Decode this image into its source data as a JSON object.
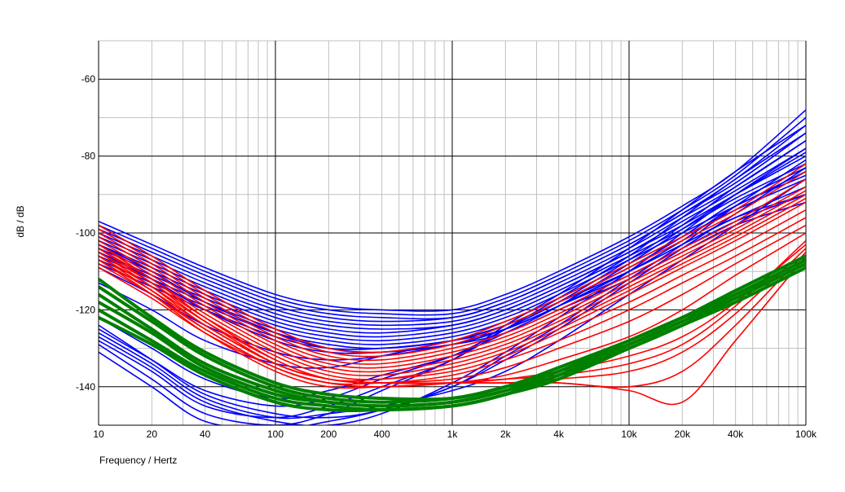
{
  "chart_data": {
    "type": "line",
    "title": "",
    "xlabel": "Frequency / Hertz",
    "ylabel": "dB / dB",
    "xscale": "log",
    "xlim": [
      10,
      100000
    ],
    "ylim": [
      -150,
      -50
    ],
    "grid": true,
    "legend": "none",
    "x_ticks": [
      {
        "value": 10,
        "label": "10"
      },
      {
        "value": 20,
        "label": "20"
      },
      {
        "value": 40,
        "label": "40"
      },
      {
        "value": 100,
        "label": "100"
      },
      {
        "value": 200,
        "label": "200"
      },
      {
        "value": 400,
        "label": "400"
      },
      {
        "value": 1000,
        "label": "1k"
      },
      {
        "value": 2000,
        "label": "2k"
      },
      {
        "value": 4000,
        "label": "4k"
      },
      {
        "value": 10000,
        "label": "10k"
      },
      {
        "value": 20000,
        "label": "20k"
      },
      {
        "value": 40000,
        "label": "40k"
      },
      {
        "value": 100000,
        "label": "100k"
      }
    ],
    "y_ticks": [
      {
        "value": -60,
        "label": "-60"
      },
      {
        "value": -80,
        "label": "-80"
      },
      {
        "value": -100,
        "label": "-100"
      },
      {
        "value": -120,
        "label": "-120"
      },
      {
        "value": -140,
        "label": "-140"
      }
    ],
    "x": [
      10,
      20,
      40,
      100,
      200,
      400,
      1000,
      2000,
      4000,
      10000,
      20000,
      40000,
      100000
    ],
    "series_groups": [
      {
        "color": "#0000ff",
        "series": [
          {
            "values": [
              -97,
              -103,
              -109,
              -116,
              -119,
              -120,
              -120,
              -116,
              -110,
              -101,
              -93,
              -84,
              -68
            ]
          },
          {
            "values": [
              -98,
              -104,
              -110,
              -117,
              -120,
              -121,
              -121,
              -117,
              -111,
              -102,
              -94,
              -85,
              -70
            ]
          },
          {
            "values": [
              -99,
              -105,
              -111,
              -118,
              -121,
              -122,
              -122,
              -118,
              -112,
              -103,
              -95,
              -86,
              -72
            ]
          },
          {
            "values": [
              -100,
              -106,
              -112,
              -119,
              -122,
              -123,
              -122,
              -118,
              -112,
              -103,
              -95,
              -87,
              -74
            ]
          },
          {
            "values": [
              -101,
              -107,
              -113,
              -120,
              -123,
              -124,
              -123,
              -119,
              -113,
              -104,
              -96,
              -88,
              -76
            ]
          },
          {
            "values": [
              -102,
              -108,
              -114,
              -121,
              -124,
              -125,
              -124,
              -120,
              -114,
              -105,
              -97,
              -89,
              -78
            ]
          },
          {
            "values": [
              -103,
              -109,
              -115,
              -122,
              -125,
              -126,
              -124,
              -120,
              -114,
              -105,
              -98,
              -90,
              -80
            ]
          },
          {
            "values": [
              -104,
              -110,
              -116,
              -123,
              -126,
              -127,
              -125,
              -121,
              -115,
              -106,
              -99,
              -91,
              -82
            ]
          },
          {
            "values": [
              -105,
              -111,
              -117,
              -124,
              -127,
              -128,
              -126,
              -122,
              -116,
              -107,
              -100,
              -93,
              -84
            ]
          },
          {
            "values": [
              -106,
              -112,
              -118,
              -125,
              -128,
              -129,
              -127,
              -123,
              -117,
              -108,
              -101,
              -94,
              -86
            ]
          },
          {
            "values": [
              -107,
              -113,
              -119,
              -126,
              -129,
              -130,
              -128,
              -124,
              -118,
              -110,
              -103,
              -96,
              -88
            ]
          },
          {
            "values": [
              -108,
              -114,
              -120,
              -127,
              -130,
              -130,
              -128,
              -125,
              -119,
              -111,
              -104,
              -97,
              -90
            ]
          },
          {
            "values": [
              -103,
              -110,
              -118,
              -126,
              -130,
              -131,
              -129,
              -125,
              -119,
              -110,
              -103,
              -96,
              -90
            ]
          },
          {
            "values": [
              -105,
              -112,
              -120,
              -128,
              -131,
              -131,
              -129,
              -126,
              -120,
              -112,
              -105,
              -98,
              -92
            ]
          },
          {
            "values": [
              -109,
              -116,
              -124,
              -131,
              -133,
              -132,
              -129,
              -125,
              -119,
              -110,
              -102,
              -93,
              -85
            ]
          },
          {
            "values": [
              -113,
              -120,
              -128,
              -134,
              -135,
              -132,
              -128,
              -124,
              -118,
              -109,
              -101,
              -92,
              -83
            ]
          },
          {
            "values": [
              -122,
              -130,
              -138,
              -143,
              -141,
              -137,
              -132,
              -126,
              -119,
              -108,
              -99,
              -90,
              -79
            ]
          },
          {
            "values": [
              -125,
              -133,
              -141,
              -145,
              -143,
              -138,
              -132,
              -125,
              -118,
              -107,
              -98,
              -88,
              -76
            ]
          },
          {
            "values": [
              -128,
              -136,
              -145,
              -148,
              -145,
              -140,
              -133,
              -125,
              -117,
              -106,
              -96,
              -86,
              -74
            ]
          },
          {
            "values": [
              -129,
              -138,
              -147,
              -150,
              -147,
              -141,
              -133,
              -124,
              -116,
              -104,
              -94,
              -84,
              -72
            ]
          },
          {
            "values": [
              -131,
              -140,
              -149,
              -151,
              -149,
              -146,
              -140,
              -132,
              -124,
              -112,
              -103,
              -93,
              -81
            ]
          },
          {
            "values": [
              -127,
              -135,
              -144,
              -149,
              -150,
              -147,
              -139,
              -131,
              -122,
              -110,
              -100,
              -90,
              -78
            ]
          },
          {
            "values": [
              -124,
              -133,
              -142,
              -147,
              -148,
              -146,
              -140,
              -133,
              -125,
              -113,
              -104,
              -95,
              -83
            ]
          },
          {
            "values": [
              -126,
              -134,
              -143,
              -148,
              -147,
              -145,
              -141,
              -136,
              -128,
              -116,
              -107,
              -98,
              -86
            ]
          }
        ]
      },
      {
        "color": "#ff0000",
        "series": [
          {
            "values": [
              -98,
              -106,
              -115,
              -125,
              -130,
              -131,
              -128,
              -123,
              -117,
              -108,
              -101,
              -94,
              -82
            ]
          },
          {
            "values": [
              -99,
              -107,
              -116,
              -126,
              -131,
              -132,
              -129,
              -124,
              -118,
              -109,
              -102,
              -95,
              -84
            ]
          },
          {
            "values": [
              -100,
              -108,
              -117,
              -127,
              -132,
              -133,
              -130,
              -126,
              -120,
              -111,
              -104,
              -97,
              -86
            ]
          },
          {
            "values": [
              -101,
              -109,
              -118,
              -128,
              -133,
              -134,
              -131,
              -127,
              -121,
              -112,
              -105,
              -98,
              -88
            ]
          },
          {
            "values": [
              -102,
              -110,
              -119,
              -129,
              -134,
              -135,
              -132,
              -128,
              -122,
              -113,
              -106,
              -99,
              -89
            ]
          },
          {
            "values": [
              -103,
              -111,
              -120,
              -130,
              -135,
              -136,
              -133,
              -129,
              -123,
              -114,
              -107,
              -100,
              -90
            ]
          },
          {
            "values": [
              -104,
              -112,
              -121,
              -131,
              -136,
              -137,
              -134,
              -130,
              -124,
              -115,
              -108,
              -101,
              -91
            ]
          },
          {
            "values": [
              -105,
              -113,
              -122,
              -132,
              -137,
              -138,
              -135,
              -131,
              -125,
              -116,
              -109,
              -102,
              -92
            ]
          },
          {
            "values": [
              -106,
              -114,
              -123,
              -133,
              -138,
              -138,
              -136,
              -132,
              -126,
              -118,
              -111,
              -104,
              -94
            ]
          },
          {
            "values": [
              -107,
              -115,
              -124,
              -134,
              -138,
              -139,
              -137,
              -133,
              -128,
              -120,
              -113,
              -106,
              -96
            ]
          },
          {
            "values": [
              -108,
              -116,
              -125,
              -135,
              -139,
              -139,
              -138,
              -135,
              -130,
              -123,
              -116,
              -108,
              -98
            ]
          },
          {
            "values": [
              -109,
              -117,
              -126,
              -135,
              -139,
              -140,
              -139,
              -137,
              -133,
              -127,
              -120,
              -111,
              -100
            ]
          },
          {
            "values": [
              -105,
              -114,
              -124,
              -134,
              -138,
              -139,
              -139,
              -138,
              -136,
              -132,
              -127,
              -118,
              -103
            ]
          },
          {
            "values": [
              -106,
              -115,
              -125,
              -135,
              -139,
              -140,
              -139,
              -139,
              -138,
              -136,
              -131,
              -121,
              -104
            ]
          },
          {
            "values": [
              -104,
              -113,
              -123,
              -134,
              -138,
              -139,
              -139,
              -139,
              -139,
              -140,
              -136,
              -124,
              -105
            ]
          },
          {
            "values": [
              -103,
              -112,
              -122,
              -133,
              -138,
              -139,
              -139,
              -139,
              -139,
              -141,
              -144,
              -128,
              -106
            ]
          },
          {
            "values": [
              -107,
              -116,
              -126,
              -136,
              -140,
              -140,
              -139,
              -138,
              -137,
              -134,
              -129,
              -119,
              -102
            ]
          }
        ]
      },
      {
        "color": "#008000",
        "series": [
          {
            "values": [
              -112,
              -122,
              -131,
              -139,
              -142,
              -143,
              -143,
              -140,
              -135,
              -128,
              -122,
              -115,
              -106
            ]
          },
          {
            "values": [
              -114,
              -123,
              -132,
              -140,
              -143,
              -144,
              -143,
              -140,
              -136,
              -128,
              -122,
              -116,
              -107
            ]
          },
          {
            "values": [
              -116,
              -125,
              -134,
              -141,
              -144,
              -145,
              -144,
              -141,
              -136,
              -129,
              -123,
              -116,
              -107
            ]
          },
          {
            "values": [
              -118,
              -126,
              -135,
              -142,
              -144,
              -145,
              -144,
              -141,
              -137,
              -129,
              -123,
              -117,
              -108
            ]
          },
          {
            "values": [
              -120,
              -128,
              -136,
              -143,
              -145,
              -146,
              -145,
              -142,
              -137,
              -130,
              -124,
              -117,
              -108
            ]
          },
          {
            "values": [
              -122,
              -129,
              -137,
              -144,
              -146,
              -146,
              -145,
              -142,
              -138,
              -130,
              -124,
              -118,
              -109
            ]
          }
        ]
      }
    ]
  }
}
